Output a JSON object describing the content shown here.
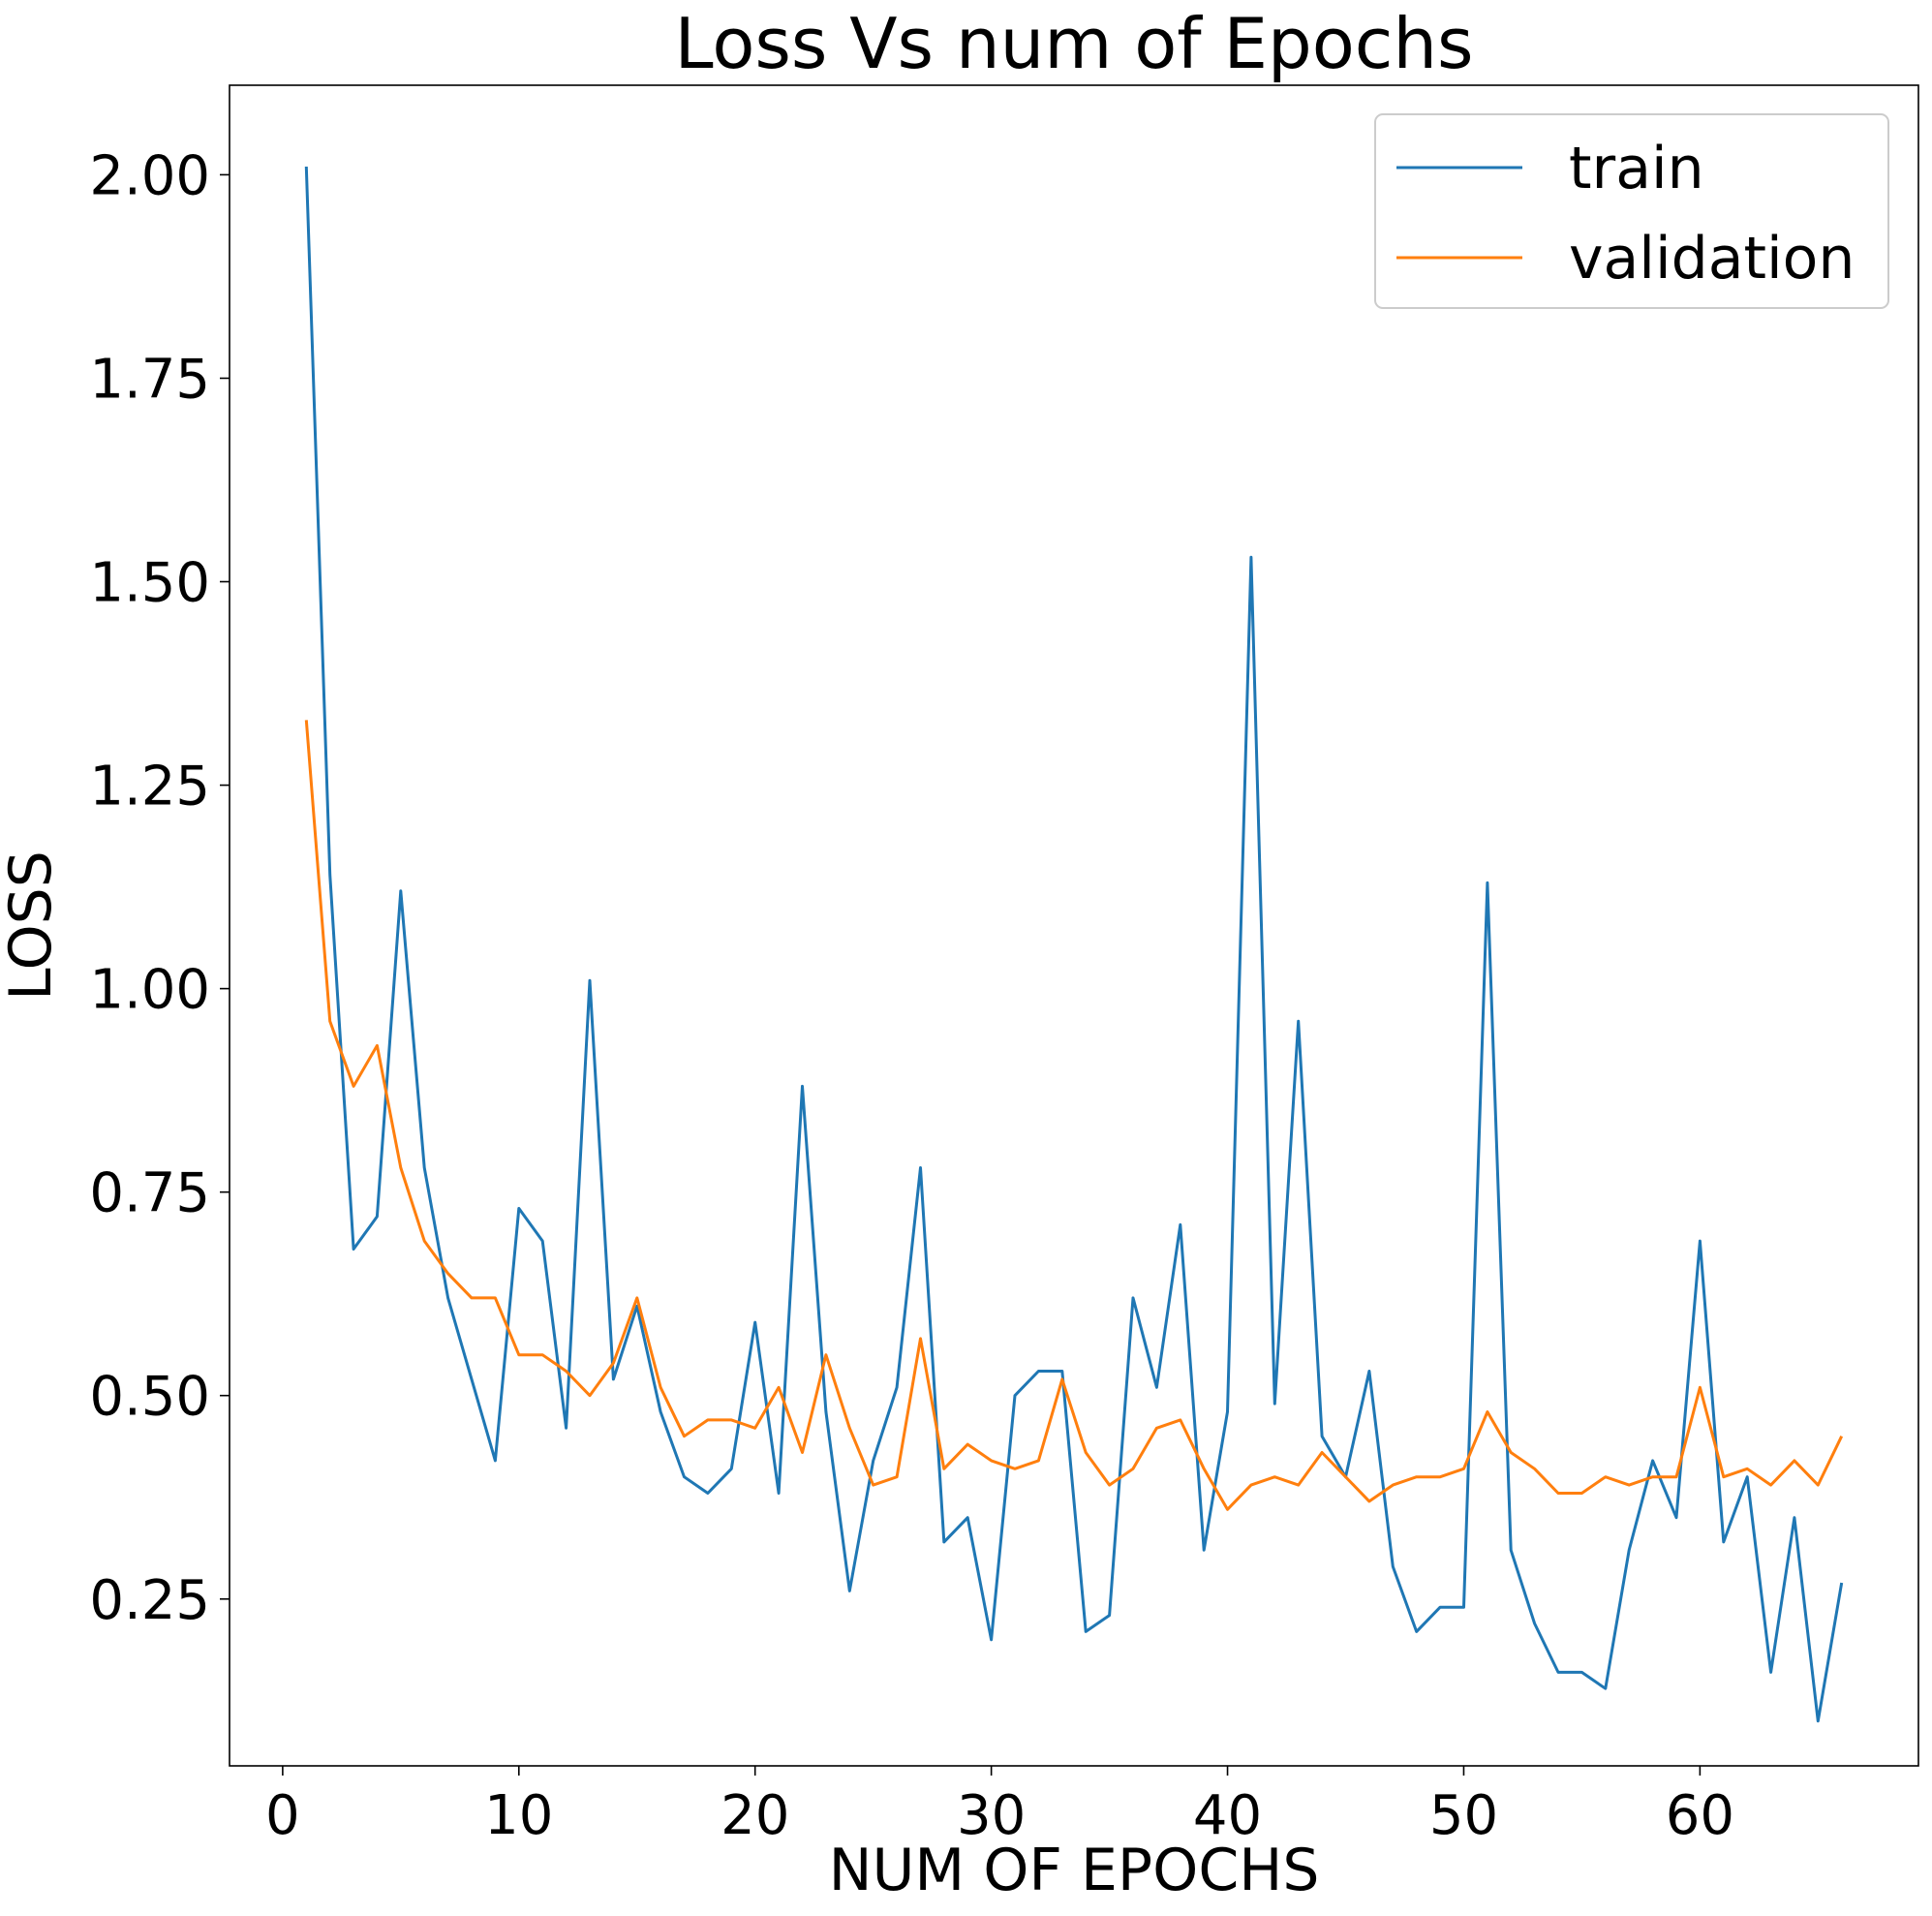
{
  "chart_data": {
    "type": "line",
    "title": "Loss Vs num of Epochs",
    "xlabel": "NUM OF EPOCHS",
    "ylabel": "LOSS",
    "xlim": [
      -2.25,
      69.25
    ],
    "ylim": [
      0.045,
      2.11
    ],
    "xticks": [
      0,
      10,
      20,
      30,
      40,
      50,
      60
    ],
    "xtick_labels": [
      "0",
      "10",
      "20",
      "30",
      "40",
      "50",
      "60"
    ],
    "yticks": [
      0.25,
      0.5,
      0.75,
      1.0,
      1.25,
      1.5,
      1.75,
      2.0
    ],
    "ytick_labels": [
      "0.25",
      "0.50",
      "0.75",
      "1.00",
      "1.25",
      "1.50",
      "1.75",
      "2.00"
    ],
    "grid": false,
    "legend": {
      "position": "upper right",
      "entries": [
        "train",
        "validation"
      ]
    },
    "x": [
      1,
      2,
      3,
      4,
      5,
      6,
      7,
      8,
      9,
      10,
      11,
      12,
      13,
      14,
      15,
      16,
      17,
      18,
      19,
      20,
      21,
      22,
      23,
      24,
      25,
      26,
      27,
      28,
      29,
      30,
      31,
      32,
      33,
      34,
      35,
      36,
      37,
      38,
      39,
      40,
      41,
      42,
      43,
      44,
      45,
      46,
      47,
      48,
      49,
      50,
      51,
      52,
      53,
      54,
      55,
      56,
      57,
      58,
      59,
      60,
      61,
      62,
      63,
      64,
      65,
      66
    ],
    "series": [
      {
        "name": "train",
        "color": "#1f77b4",
        "values": [
          2.01,
          1.14,
          0.68,
          0.72,
          1.12,
          0.78,
          0.62,
          0.52,
          0.42,
          0.73,
          0.69,
          0.46,
          1.01,
          0.52,
          0.61,
          0.48,
          0.4,
          0.38,
          0.41,
          0.59,
          0.38,
          0.88,
          0.48,
          0.26,
          0.42,
          0.51,
          0.78,
          0.32,
          0.35,
          0.2,
          0.5,
          0.53,
          0.53,
          0.21,
          0.23,
          0.62,
          0.51,
          0.71,
          0.31,
          0.48,
          1.53,
          0.49,
          0.96,
          0.45,
          0.4,
          0.53,
          0.29,
          0.21,
          0.24,
          0.24,
          1.13,
          0.31,
          0.22,
          0.16,
          0.16,
          0.14,
          0.31,
          0.42,
          0.35,
          0.69,
          0.32,
          0.4,
          0.16,
          0.35,
          0.1,
          0.27
        ]
      },
      {
        "name": "validation",
        "color": "#ff7f0e",
        "values": [
          1.33,
          0.96,
          0.88,
          0.93,
          0.78,
          0.69,
          0.65,
          0.62,
          0.62,
          0.55,
          0.55,
          0.53,
          0.5,
          0.54,
          0.62,
          0.51,
          0.45,
          0.47,
          0.47,
          0.46,
          0.51,
          0.43,
          0.55,
          0.46,
          0.39,
          0.4,
          0.57,
          0.41,
          0.44,
          0.42,
          0.41,
          0.42,
          0.52,
          0.43,
          0.39,
          0.41,
          0.46,
          0.47,
          0.41,
          0.36,
          0.39,
          0.4,
          0.39,
          0.43,
          0.4,
          0.37,
          0.39,
          0.4,
          0.4,
          0.41,
          0.48,
          0.43,
          0.41,
          0.38,
          0.38,
          0.4,
          0.39,
          0.4,
          0.4,
          0.51,
          0.4,
          0.41,
          0.39,
          0.42,
          0.39,
          0.45
        ]
      }
    ]
  }
}
